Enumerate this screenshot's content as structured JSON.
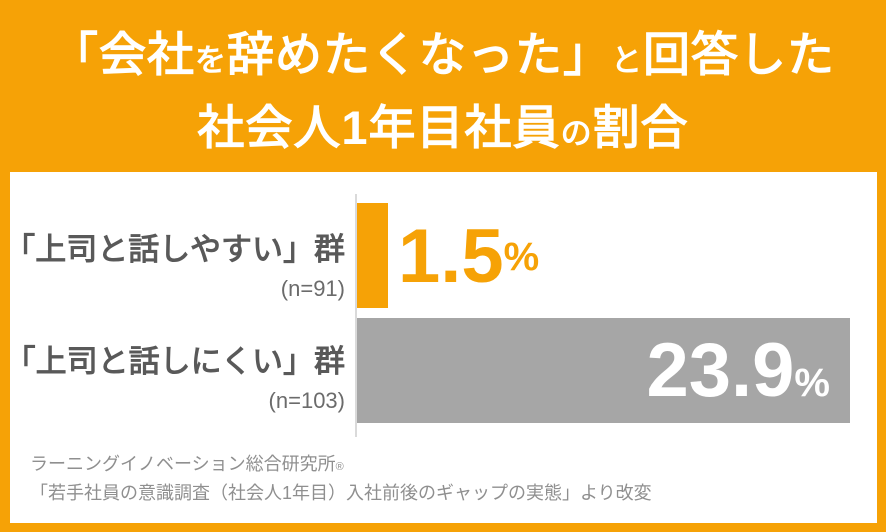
{
  "page": {
    "background_color": "#F6A206",
    "panel_color": "#FFFFFF"
  },
  "header": {
    "title_line1": [
      "「会社",
      "を",
      "辞めたくなった」",
      "と",
      "回答した"
    ],
    "title_line2": [
      "社会人1年目社員",
      "の",
      "割合"
    ]
  },
  "chart_data": {
    "type": "bar",
    "orientation": "horizontal",
    "title": "「会社を辞めたくなった」と回答した社会人1年目社員の割合",
    "categories": [
      "「上司と話しやすい」群",
      "「上司と話しにくい」群"
    ],
    "sample_labels": [
      "(n=91)",
      "(n=103)"
    ],
    "values": [
      1.5,
      23.9
    ],
    "value_labels": [
      "1.5",
      "23.9"
    ],
    "unit": "%",
    "xlim": [
      0,
      24
    ],
    "grid": false,
    "legend": false,
    "bar_colors": [
      "#F6A206",
      "#A6A6A6"
    ],
    "value_text_colors": [
      "#F6A206",
      "#FFFFFF"
    ],
    "axis_line_color": "#DADADA"
  },
  "source": {
    "line1": "ラーニングイノベーション総合研究所",
    "reg_mark": "®",
    "line2": "「若手社員の意識調査（社会人1年目）入社前後のギャップの実態」より改変"
  }
}
